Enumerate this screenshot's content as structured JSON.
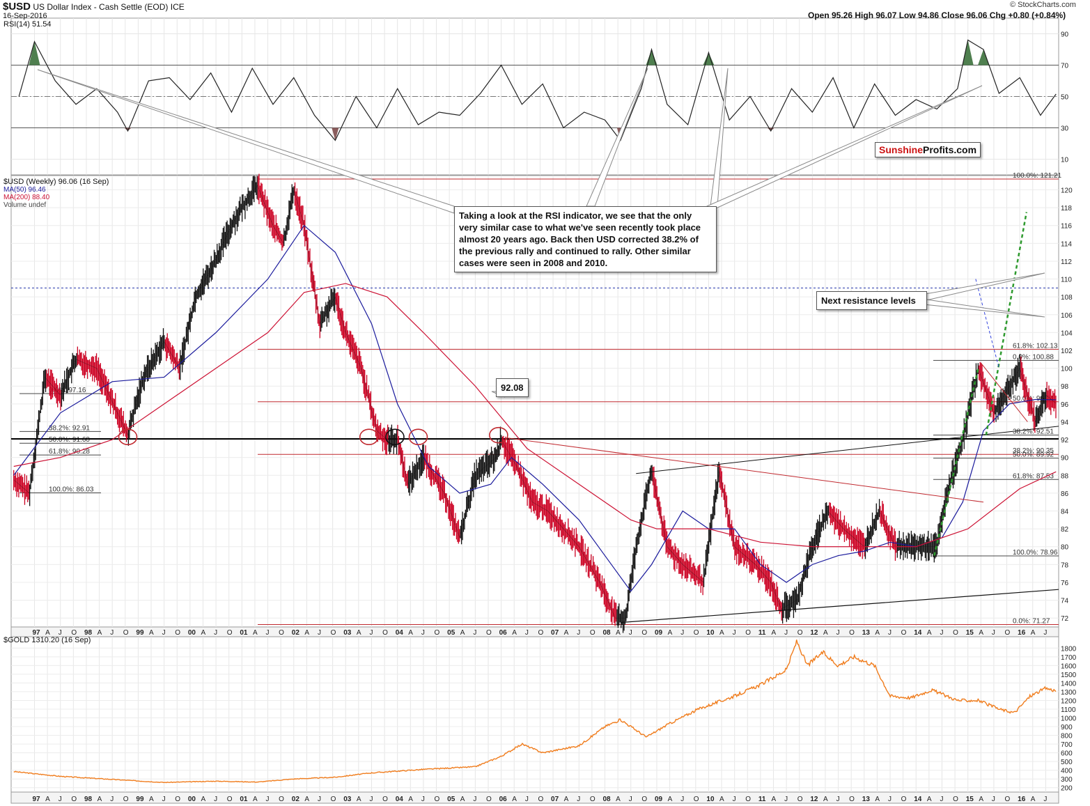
{
  "header": {
    "symbol": "$USD",
    "name": "US Dollar Index - Cash Settle (EOD) ICE",
    "date": "16-Sep-2016",
    "credit": "© StockCharts.com",
    "quote": "Open 95.26  High 96.07  Low 94.86  Close 96.06  Chg +0.80 (+0.84%)"
  },
  "brand": {
    "sunshine": "Sunshine",
    "profits": "Profits.com"
  },
  "annotations": {
    "rsi_note": "Taking a look at the RSI indicator, we see that the only very similar case to what we've seen recently took place almost 20 years ago. Back then USD corrected 38.2% of the previous rally and continued to rally. Other similar cases were seen in 2008 and 2010.",
    "resistance_note": "Next resistance levels",
    "level_label": "92.08"
  },
  "colors": {
    "price_up": "#111111",
    "price_down": "#cc0022",
    "ma50": "#1a1a9c",
    "ma200": "#cc1133",
    "gold": "#f07c1c",
    "rsi": "#222222",
    "rsi_fill_high": "#4f7f4f",
    "rsi_fill_low": "#8a5c5c",
    "fib": "#c0282e",
    "trend_green": "#2e9a2e",
    "trend_blue": "#3344dd",
    "level": "#000000"
  },
  "chart_data": [
    {
      "type": "line",
      "panel": "rsi",
      "legend": "RSI(14) 51.54",
      "y_ticks": [
        10,
        30,
        50,
        70,
        90
      ],
      "ylim": [
        0,
        100
      ],
      "overbought": 70,
      "oversold": 30,
      "midline": 50,
      "x": [
        1996.7,
        1997.0,
        1997.4,
        1997.8,
        1998.2,
        1998.6,
        1998.8,
        1999.2,
        1999.6,
        2000.0,
        2000.4,
        2000.8,
        2001.2,
        2001.6,
        2002.0,
        2002.4,
        2002.8,
        2003.2,
        2003.6,
        2004.0,
        2004.4,
        2004.8,
        2005.2,
        2005.6,
        2006.0,
        2006.4,
        2006.8,
        2007.2,
        2007.6,
        2008.0,
        2008.3,
        2008.7,
        2008.9,
        2009.2,
        2009.6,
        2010.0,
        2010.4,
        2010.8,
        2011.2,
        2011.6,
        2012.0,
        2012.4,
        2012.8,
        2013.2,
        2013.6,
        2014.0,
        2014.4,
        2014.8,
        2015.0,
        2015.3,
        2015.6,
        2016.0,
        2016.4,
        2016.7
      ],
      "values": [
        50,
        85,
        60,
        45,
        55,
        40,
        28,
        60,
        62,
        48,
        65,
        40,
        68,
        45,
        62,
        38,
        22,
        50,
        30,
        55,
        32,
        40,
        38,
        52,
        70,
        45,
        58,
        30,
        40,
        35,
        22,
        55,
        80,
        45,
        32,
        78,
        35,
        50,
        28,
        55,
        40,
        62,
        30,
        58,
        38,
        48,
        42,
        55,
        86,
        80,
        52,
        62,
        38,
        51.54
      ]
    },
    {
      "type": "line",
      "panel": "price",
      "title": "$USD (Weekly) 96.06 (16 Sep)",
      "legend": [
        "$USD (Weekly) 96.06 (16 Sep)",
        "MA(50) 96.46",
        "MA(200) 88.40",
        "Volume undef"
      ],
      "y_ticks": [
        72,
        74,
        76,
        78,
        80,
        82,
        84,
        86,
        88,
        90,
        92,
        94,
        96,
        98,
        100,
        102,
        104,
        106,
        108,
        110,
        112,
        114,
        116,
        118,
        120
      ],
      "ylim": [
        71,
        121.6
      ],
      "series": [
        {
          "name": "$USD",
          "x": [
            1996.6,
            1996.9,
            1997.2,
            1997.5,
            1997.8,
            1998.2,
            1998.6,
            1998.8,
            1999.1,
            1999.5,
            1999.8,
            2000.1,
            2000.4,
            2000.8,
            2001.0,
            2001.3,
            2001.6,
            2001.8,
            2002.0,
            2002.2,
            2002.5,
            2002.8,
            2003.0,
            2003.3,
            2003.6,
            2003.8,
            2004.0,
            2004.2,
            2004.5,
            2004.9,
            2005.2,
            2005.5,
            2005.9,
            2006.0,
            2006.3,
            2006.6,
            2006.9,
            2007.2,
            2007.5,
            2007.9,
            2008.2,
            2008.4,
            2008.6,
            2008.9,
            2009.2,
            2009.5,
            2009.9,
            2010.2,
            2010.5,
            2010.9,
            2011.2,
            2011.4,
            2011.7,
            2012.0,
            2012.3,
            2012.6,
            2013.0,
            2013.3,
            2013.6,
            2014.0,
            2014.4,
            2014.6,
            2014.9,
            2015.2,
            2015.5,
            2015.8,
            2016.0,
            2016.3,
            2016.5,
            2016.7
          ],
          "values": [
            87.5,
            86.0,
            99,
            97,
            101,
            100,
            95,
            92.5,
            99,
            103,
            100,
            108,
            111,
            116,
            118,
            120.5,
            116,
            114,
            120,
            116,
            105,
            108,
            104,
            100,
            93,
            92,
            92,
            87,
            90,
            86,
            81,
            88,
            90,
            92,
            89,
            85,
            84,
            82,
            80,
            76,
            72,
            72,
            80,
            88.5,
            80,
            78,
            76,
            88.5,
            80,
            78,
            76,
            73,
            74,
            80,
            84,
            82,
            80,
            84,
            80,
            80,
            80,
            86,
            92,
            100,
            95,
            98,
            100,
            94,
            97,
            96.06
          ]
        },
        {
          "name": "MA(50)",
          "x": [
            1996.6,
            1997.5,
            1998.5,
            1999.5,
            2000.5,
            2001.5,
            2002.2,
            2002.8,
            2003.5,
            2004.0,
            2004.6,
            2005.2,
            2005.8,
            2006.2,
            2006.8,
            2007.5,
            2008.0,
            2008.5,
            2008.9,
            2009.5,
            2010.0,
            2010.5,
            2011.0,
            2011.5,
            2012.0,
            2012.5,
            2013.0,
            2013.5,
            2014.0,
            2014.5,
            2014.9,
            2015.3,
            2015.8,
            2016.3,
            2016.7
          ],
          "values": [
            88,
            95,
            98.5,
            99,
            104,
            110,
            116,
            113,
            105,
            96,
            89,
            86,
            87,
            90,
            87,
            83,
            79,
            75,
            78,
            84,
            82,
            82,
            78,
            76,
            78,
            79,
            79.5,
            80.5,
            80,
            81,
            85,
            93,
            96,
            96.5,
            96.46
          ]
        },
        {
          "name": "MA(200)",
          "x": [
            1996.6,
            1997.5,
            1998.5,
            1999.5,
            2000.5,
            2001.5,
            2002.2,
            2003.0,
            2003.8,
            2004.5,
            2005.5,
            2006.5,
            2007.5,
            2008.5,
            2009.0,
            2010.0,
            2011.0,
            2012.0,
            2013.0,
            2014.0,
            2015.0,
            2016.0,
            2016.7
          ],
          "values": [
            89,
            90,
            92,
            96,
            100,
            104,
            108.5,
            109.5,
            108,
            104,
            98,
            91,
            87,
            83,
            82,
            82,
            80.5,
            80,
            80,
            80,
            82,
            86.5,
            88.4
          ]
        }
      ],
      "fib_levels": [
        {
          "label": "100.0%: 121.21",
          "value": 121.21
        },
        {
          "label": "61.8%: 102.13",
          "value": 102.13
        },
        {
          "label": "0.0%: 100.88",
          "value": 100.88
        },
        {
          "label": "50.0%: 96.24",
          "value": 96.24
        },
        {
          "label": "38.2%: 92.51",
          "value": 92.51
        },
        {
          "label": "38.2%: 90.35",
          "value": 90.35
        },
        {
          "label": "50.0%: 89.92",
          "value": 89.92
        },
        {
          "label": "61.8%: 87.53",
          "value": 87.53
        },
        {
          "label": "100.0%: 78.96",
          "value": 78.96
        },
        {
          "label": "0.0%: 71.27",
          "value": 71.27
        }
      ],
      "left_fib_levels": [
        {
          "label": "0.0%: 97.16",
          "value": 97.16
        },
        {
          "label": "38.2%: 92.91",
          "value": 92.91
        },
        {
          "label": "50.0%: 91.60",
          "value": 91.6
        },
        {
          "label": "61.8%: 90.28",
          "value": 90.28
        },
        {
          "label": "100.0%: 86.03",
          "value": 86.03
        }
      ],
      "horizontal_levels": [
        {
          "label": "92.08",
          "value": 92.08
        },
        {
          "value": 109
        }
      ]
    },
    {
      "type": "line",
      "panel": "gold",
      "title": "$GOLD 1310.20 (16 Sep)",
      "y_ticks": [
        200,
        300,
        400,
        500,
        600,
        700,
        800,
        900,
        1000,
        1100,
        1200,
        1300,
        1400,
        1500,
        1600,
        1700,
        1800
      ],
      "ylim": [
        150,
        1930
      ],
      "series": [
        {
          "name": "$GOLD",
          "x": [
            1996.6,
            1997.5,
            1998.5,
            1999.5,
            2000.5,
            2001.3,
            2002.0,
            2002.8,
            2003.5,
            2004.5,
            2005.5,
            2006.0,
            2006.4,
            2006.8,
            2007.5,
            2008.0,
            2008.3,
            2008.8,
            2009.2,
            2009.8,
            2010.5,
            2011.0,
            2011.5,
            2011.7,
            2011.9,
            2012.2,
            2012.5,
            2012.8,
            2013.2,
            2013.5,
            2013.9,
            2014.3,
            2014.8,
            2015.2,
            2015.6,
            2015.9,
            2016.2,
            2016.5,
            2016.7
          ],
          "values": [
            385,
            330,
            295,
            260,
            275,
            265,
            300,
            320,
            370,
            410,
            440,
            560,
            700,
            600,
            680,
            900,
            980,
            780,
            920,
            1100,
            1250,
            1380,
            1550,
            1880,
            1600,
            1750,
            1600,
            1700,
            1600,
            1250,
            1230,
            1320,
            1200,
            1200,
            1100,
            1060,
            1250,
            1340,
            1310.2
          ]
        }
      ]
    },
    {
      "type": "table",
      "panel": "x-axis",
      "tick_labels": [
        "97",
        "A",
        "J",
        "O",
        "98",
        "A",
        "J",
        "O",
        "99",
        "A",
        "J",
        "O",
        "00",
        "A",
        "J",
        "O",
        "01",
        "A",
        "J",
        "O",
        "02",
        "A",
        "J",
        "O",
        "03",
        "A",
        "J",
        "O",
        "04",
        "A",
        "J",
        "O",
        "05",
        "A",
        "J",
        "O",
        "06",
        "A",
        "J",
        "O",
        "07",
        "A",
        "J",
        "O",
        "08",
        "A",
        "J",
        "O",
        "09",
        "A",
        "J",
        "O",
        "10",
        "A",
        "J",
        "O",
        "11",
        "A",
        "J",
        "O",
        "12",
        "A",
        "J",
        "O",
        "13",
        "A",
        "J",
        "O",
        "14",
        "A",
        "J",
        "O",
        "15",
        "A",
        "J",
        "O",
        "16",
        "A",
        "J"
      ]
    }
  ]
}
